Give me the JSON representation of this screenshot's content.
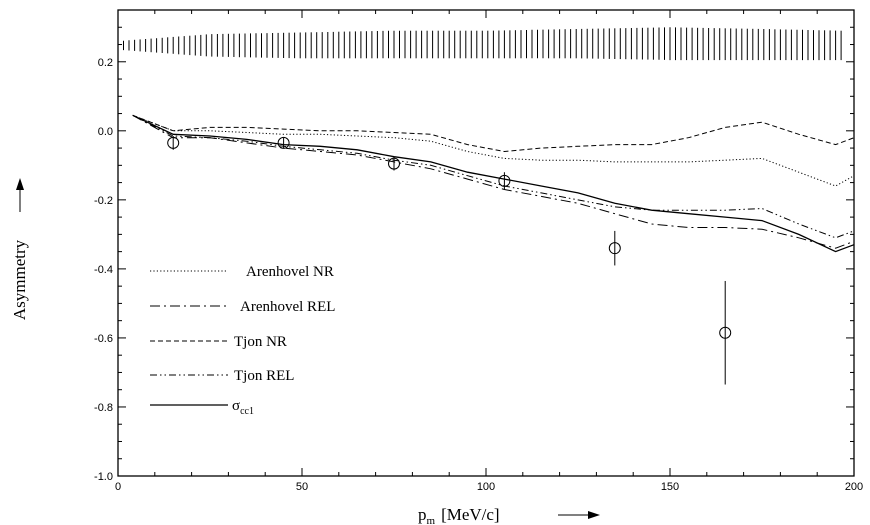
{
  "chart_data": {
    "type": "line",
    "xlabel": "p",
    "xlabel_sub": "m",
    "xlabel_unit": "[MeV/c]",
    "ylabel": "Asymmetry",
    "xlim": [
      0,
      200
    ],
    "ylim": [
      -1.0,
      0.35
    ],
    "x_ticks": [
      0,
      50,
      100,
      150,
      200
    ],
    "x_tick_labels": [
      "0",
      "50",
      "100",
      "150",
      "200"
    ],
    "y_ticks": [
      0.2,
      0.0,
      -0.2,
      -0.4,
      -0.6,
      -0.8,
      -1.0
    ],
    "y_tick_labels": [
      "0.2",
      "0.0",
      "-0.2",
      "-0.4",
      "-0.6",
      "-0.8",
      "-1.0"
    ],
    "grid": false,
    "legend_position": "bottom-left",
    "band": {
      "x": [
        0,
        25,
        50,
        75,
        100,
        125,
        150,
        175,
        197
      ],
      "low": [
        0.235,
        0.215,
        0.21,
        0.21,
        0.21,
        0.21,
        0.205,
        0.205,
        0.205
      ],
      "high": [
        0.26,
        0.28,
        0.285,
        0.29,
        0.29,
        0.295,
        0.3,
        0.295,
        0.29
      ]
    },
    "series": [
      {
        "name": "Arenhovel NR",
        "style": "dotted",
        "x": [
          4,
          15,
          25,
          35,
          45,
          55,
          65,
          75,
          85,
          95,
          105,
          115,
          125,
          135,
          145,
          155,
          165,
          175,
          185,
          195,
          200
        ],
        "y": [
          0.045,
          0.0,
          0.0,
          -0.005,
          -0.01,
          -0.01,
          -0.015,
          -0.02,
          -0.03,
          -0.06,
          -0.08,
          -0.085,
          -0.085,
          -0.09,
          -0.09,
          -0.09,
          -0.085,
          -0.08,
          -0.12,
          -0.16,
          -0.13
        ]
      },
      {
        "name": "Arenhovel REL",
        "style": "long-dash-dot",
        "x": [
          4,
          15,
          25,
          35,
          45,
          55,
          65,
          75,
          85,
          95,
          105,
          115,
          125,
          135,
          145,
          155,
          165,
          175,
          185,
          195,
          200
        ],
        "y": [
          0.045,
          -0.02,
          -0.02,
          -0.035,
          -0.05,
          -0.06,
          -0.07,
          -0.09,
          -0.11,
          -0.14,
          -0.17,
          -0.19,
          -0.21,
          -0.24,
          -0.27,
          -0.28,
          -0.28,
          -0.285,
          -0.31,
          -0.34,
          -0.32
        ]
      },
      {
        "name": "Tjon NR",
        "style": "dashed",
        "x": [
          4,
          15,
          25,
          35,
          45,
          55,
          65,
          75,
          85,
          95,
          105,
          115,
          125,
          135,
          145,
          155,
          165,
          175,
          185,
          195,
          200
        ],
        "y": [
          0.045,
          0.0,
          0.01,
          0.01,
          0.005,
          0.0,
          0.0,
          -0.005,
          -0.01,
          -0.04,
          -0.06,
          -0.05,
          -0.045,
          -0.04,
          -0.04,
          -0.02,
          0.01,
          0.025,
          -0.01,
          -0.04,
          -0.02
        ]
      },
      {
        "name": "Tjon REL",
        "style": "dash-dot-dot",
        "x": [
          4,
          15,
          25,
          35,
          45,
          55,
          65,
          75,
          85,
          95,
          105,
          115,
          125,
          135,
          145,
          155,
          165,
          175,
          185,
          195,
          200
        ],
        "y": [
          0.045,
          -0.015,
          -0.02,
          -0.03,
          -0.045,
          -0.055,
          -0.065,
          -0.085,
          -0.1,
          -0.13,
          -0.16,
          -0.18,
          -0.2,
          -0.22,
          -0.23,
          -0.23,
          -0.23,
          -0.225,
          -0.27,
          -0.31,
          -0.29
        ]
      },
      {
        "name": "σ",
        "name_sub": "cc1",
        "style": "solid",
        "x": [
          4,
          15,
          25,
          35,
          45,
          55,
          65,
          75,
          85,
          95,
          105,
          115,
          125,
          135,
          145,
          155,
          165,
          175,
          185,
          195,
          200
        ],
        "y": [
          0.045,
          -0.01,
          -0.015,
          -0.025,
          -0.04,
          -0.045,
          -0.055,
          -0.075,
          -0.09,
          -0.12,
          -0.14,
          -0.16,
          -0.18,
          -0.21,
          -0.23,
          -0.24,
          -0.25,
          -0.26,
          -0.3,
          -0.35,
          -0.33
        ]
      }
    ],
    "data_points": {
      "x": [
        15,
        45,
        75,
        105,
        135,
        165
      ],
      "y": [
        -0.035,
        -0.035,
        -0.095,
        -0.145,
        -0.34,
        -0.585
      ],
      "err": [
        0.02,
        0.015,
        0.02,
        0.025,
        0.05,
        0.15
      ]
    }
  }
}
